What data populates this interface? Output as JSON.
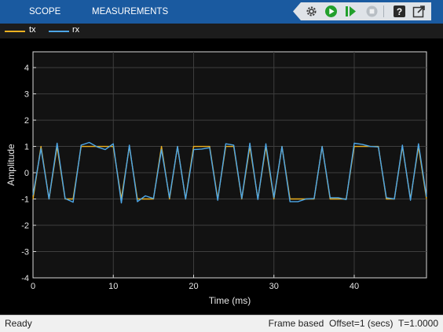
{
  "toolbar": {
    "tabs": [
      "SCOPE",
      "MEASUREMENTS"
    ],
    "controls": [
      "settings-icon",
      "run-icon",
      "step-forward-icon",
      "stop-icon",
      "help-icon",
      "undock-icon"
    ]
  },
  "legend": [
    {
      "name": "tx",
      "color": "#edb120"
    },
    {
      "name": "rx",
      "color": "#4da6e6"
    }
  ],
  "chart_data": {
    "type": "line",
    "xlabel": "Time (ms)",
    "ylabel": "Amplitude",
    "xlim": [
      0,
      49
    ],
    "ylim": [
      -4,
      4.6
    ],
    "xticks": [
      0,
      10,
      20,
      30,
      40
    ],
    "yticks": [
      -4,
      -3,
      -2,
      -1,
      0,
      1,
      2,
      3,
      4
    ],
    "grid": true,
    "background": "#000000",
    "series": [
      {
        "name": "tx",
        "color": "#edb120",
        "x": [
          0,
          1,
          2,
          3,
          4,
          5,
          6,
          7,
          8,
          9,
          10,
          11,
          12,
          13,
          14,
          15,
          16,
          17,
          18,
          19,
          20,
          21,
          22,
          23,
          24,
          25,
          26,
          27,
          28,
          29,
          30,
          31,
          32,
          33,
          34,
          35,
          36,
          37,
          38,
          39,
          40,
          41,
          42,
          43,
          44,
          45,
          46,
          47,
          48,
          49
        ],
        "y": [
          -1,
          1,
          -1,
          1,
          -1,
          -1,
          1,
          1,
          1,
          1,
          1,
          -1,
          1,
          -1,
          -1,
          -1,
          1,
          -1,
          1,
          -1,
          1,
          1,
          1,
          -1,
          1,
          1,
          -1,
          1,
          -1,
          1,
          -1,
          1,
          -1,
          -1,
          -1,
          -1,
          1,
          -1,
          -1,
          -1,
          1,
          1,
          1,
          1,
          -1,
          -1,
          1,
          -1,
          1,
          -1
        ]
      },
      {
        "name": "rx",
        "color": "#4da6e6",
        "x": [
          0,
          1,
          2,
          3,
          4,
          5,
          6,
          7,
          8,
          9,
          10,
          11,
          12,
          13,
          14,
          15,
          16,
          17,
          18,
          19,
          20,
          21,
          22,
          23,
          24,
          25,
          26,
          27,
          28,
          29,
          30,
          31,
          32,
          33,
          34,
          35,
          36,
          37,
          38,
          39,
          40,
          41,
          42,
          43,
          44,
          45,
          46,
          47,
          48,
          49
        ],
        "y": [
          -0.85,
          0.92,
          -1.0,
          1.12,
          -0.98,
          -1.12,
          1.05,
          1.15,
          0.98,
          0.88,
          1.1,
          -1.15,
          1.05,
          -1.1,
          -0.88,
          -0.98,
          0.88,
          -0.95,
          1.0,
          -1.0,
          0.88,
          0.9,
          0.95,
          -1.05,
          1.1,
          1.05,
          -0.98,
          1.12,
          -1.02,
          1.1,
          -0.95,
          1.0,
          -1.1,
          -1.1,
          -1.0,
          -0.98,
          1.0,
          -0.95,
          -0.95,
          -1.02,
          1.12,
          1.08,
          1.0,
          0.98,
          -0.95,
          -1.0,
          1.05,
          -1.05,
          1.1,
          -0.92
        ]
      }
    ]
  },
  "status": {
    "left": "Ready",
    "right": "Frame based  Offset=1 (secs)  T=1.0000"
  }
}
